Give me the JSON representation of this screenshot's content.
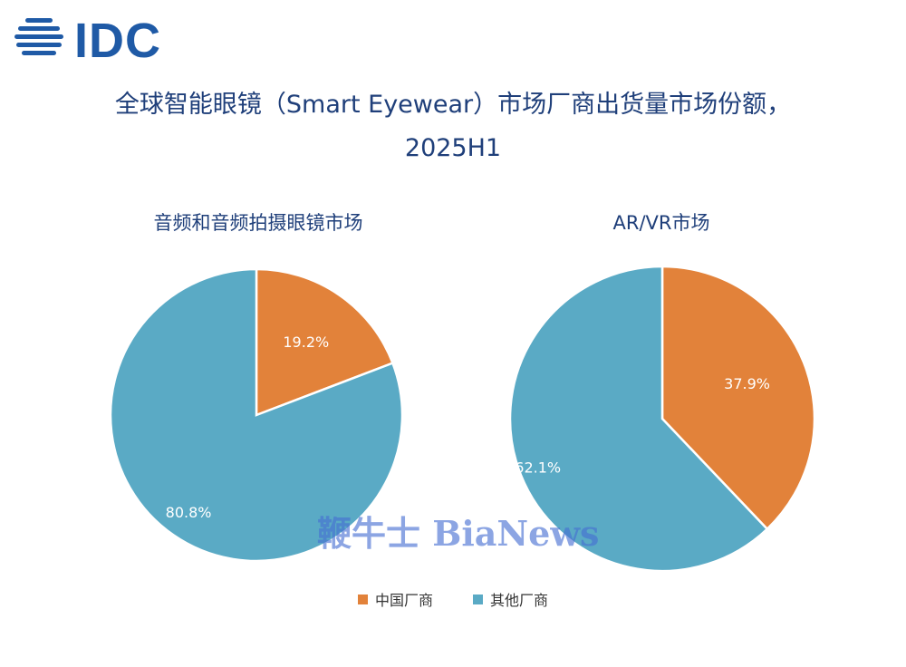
{
  "logo": {
    "text": "IDC"
  },
  "title_line1": "全球智能眼镜（Smart Eyewear）市场厂商出货量市场份额，",
  "title_line2": "2025H1",
  "colors": {
    "china": "#e2823a",
    "other": "#5aaac5",
    "title": "#1f3f7a"
  },
  "chart_data": [
    {
      "type": "pie",
      "title": "音频和音频拍摄眼镜市场",
      "slices": [
        {
          "name": "中国厂商",
          "value": 19.2,
          "label": "19.2%"
        },
        {
          "name": "其他厂商",
          "value": 80.8,
          "label": "80.8%"
        }
      ],
      "legend": "bottom-center"
    },
    {
      "type": "pie",
      "title": "AR/VR市场",
      "slices": [
        {
          "name": "中国厂商",
          "value": 37.9,
          "label": "37.9%"
        },
        {
          "name": "其他厂商",
          "value": 62.1,
          "label": "62.1%"
        }
      ],
      "legend": "bottom-center"
    }
  ],
  "legend": {
    "items": [
      "中国厂商",
      "其他厂商"
    ]
  },
  "watermark": {
    "text": "鞭牛士 BiaNews"
  }
}
